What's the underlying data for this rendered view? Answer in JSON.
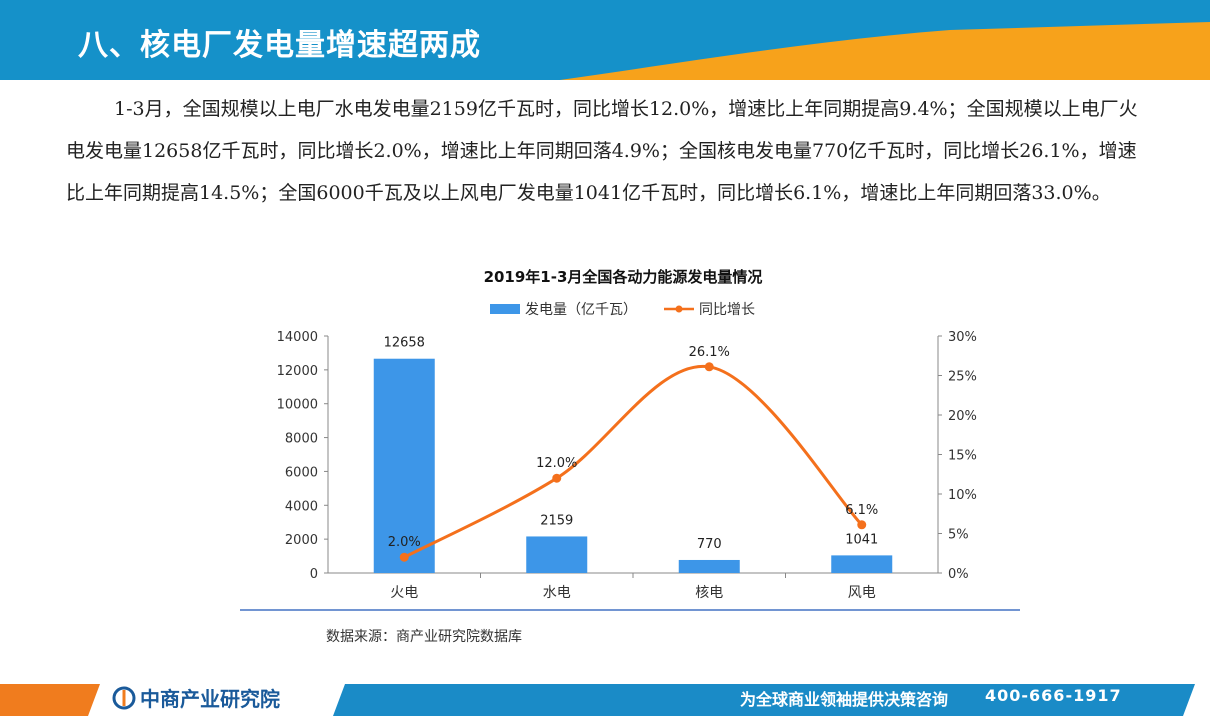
{
  "slide": {
    "title": "八、核电厂发电量增速超两成",
    "paragraph": "1-3月，全国规模以上电厂水电发电量2159亿千瓦时，同比增长12.0%，增速比上年同期提高9.4%；全国规模以上电厂火电发电量12658亿千瓦时，同比增长2.0%，增速比上年同期回落4.9%；全国核电发电量770亿千瓦时，同比增长26.1%，增速比上年同期提高14.5%；全国6000千瓦及以上风电厂发电量1041亿千瓦时，同比增长6.1%，增速比上年同期回落33.0%。",
    "source": "数据来源：商产业研究院数据库"
  },
  "footer": {
    "logo": "中商产业研究院",
    "slogan": "为全球商业领袖提供决策咨询",
    "phone": "400-666-1917"
  },
  "colors": {
    "banner_blue": "#1591c9",
    "banner_orange": "#f7a21b",
    "bar": "#3d96e8",
    "line": "#f4701c",
    "footer_blue": "#1a8bc7",
    "footer_orange": "#f07c1e"
  },
  "chart_data": {
    "type": "bar",
    "title": "2019年1-3月全国各动力能源发电量情况",
    "categories": [
      "火电",
      "水电",
      "核电",
      "风电"
    ],
    "series": [
      {
        "name": "发电量（亿千瓦）",
        "type": "bar",
        "axis": "left",
        "values": [
          12658,
          2159,
          770,
          1041
        ],
        "labels": [
          "12658",
          "2159",
          "770",
          "1041"
        ]
      },
      {
        "name": "同比增长",
        "type": "line",
        "axis": "right",
        "values": [
          2.0,
          12.0,
          26.1,
          6.1
        ],
        "labels": [
          "2.0%",
          "12.0%",
          "26.1%",
          "6.1%"
        ]
      }
    ],
    "y_left": {
      "min": 0,
      "max": 14000,
      "step": 2000,
      "ticks": [
        "0",
        "2000",
        "4000",
        "6000",
        "8000",
        "10000",
        "12000",
        "14000"
      ]
    },
    "y_right": {
      "min": 0,
      "max": 30,
      "step": 5,
      "ticks": [
        "0%",
        "5%",
        "10%",
        "15%",
        "20%",
        "25%",
        "30%"
      ]
    },
    "legend_position": "top-center",
    "grid": false
  }
}
